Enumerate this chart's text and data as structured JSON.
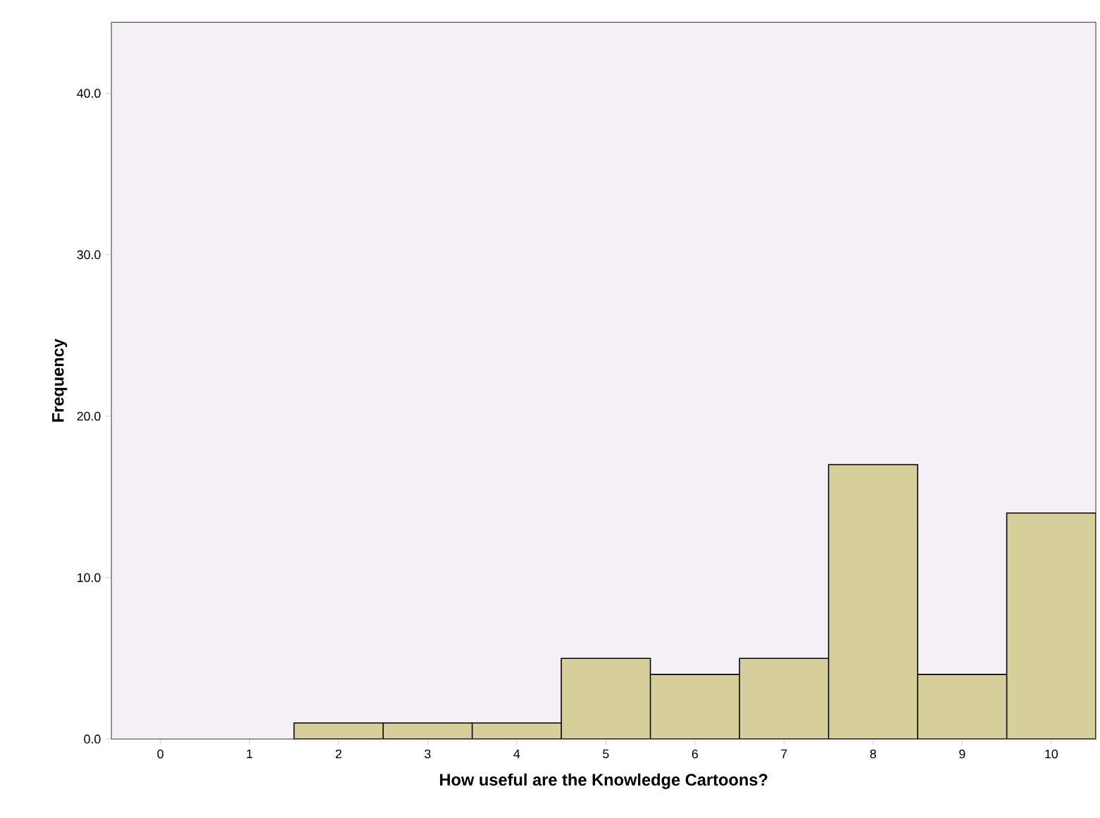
{
  "chart_data": {
    "type": "histogram",
    "xlabel": "How useful are the Knowledge Cartoons?",
    "ylabel": "Frequency",
    "bins": [
      1.5,
      2.5,
      3.5,
      4.5,
      5.5,
      6.5,
      7.5,
      8.5,
      9.5,
      10.5
    ],
    "values": [
      1,
      1,
      1,
      5,
      4,
      5,
      17,
      4,
      14
    ],
    "color": "#d6cf9c",
    "xlim": [
      -0.55,
      10.5
    ],
    "ylim": [
      0,
      44.4
    ],
    "xticks": [
      0,
      1,
      2,
      3,
      4,
      5,
      6,
      7,
      8,
      9,
      10
    ],
    "yticks": [
      {
        "value": 0,
        "label": "0.0"
      },
      {
        "value": 10,
        "label": "10.0"
      },
      {
        "value": 20,
        "label": "20.0"
      },
      {
        "value": 30,
        "label": "30.0"
      },
      {
        "value": 40,
        "label": "40.0"
      }
    ],
    "grid": false
  }
}
